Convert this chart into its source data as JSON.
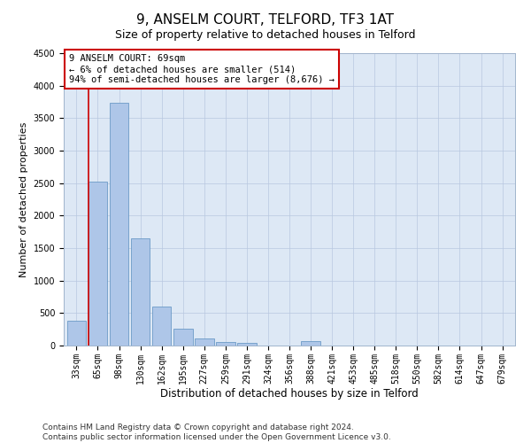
{
  "title": "9, ANSELM COURT, TELFORD, TF3 1AT",
  "subtitle": "Size of property relative to detached houses in Telford",
  "xlabel": "Distribution of detached houses by size in Telford",
  "ylabel": "Number of detached properties",
  "categories": [
    "33sqm",
    "65sqm",
    "98sqm",
    "130sqm",
    "162sqm",
    "195sqm",
    "227sqm",
    "259sqm",
    "291sqm",
    "324sqm",
    "356sqm",
    "388sqm",
    "421sqm",
    "453sqm",
    "485sqm",
    "518sqm",
    "550sqm",
    "582sqm",
    "614sqm",
    "647sqm",
    "679sqm"
  ],
  "values": [
    380,
    2520,
    3730,
    1650,
    605,
    255,
    105,
    60,
    40,
    0,
    0,
    65,
    0,
    0,
    0,
    0,
    0,
    0,
    0,
    0,
    0
  ],
  "bar_color": "#aec6e8",
  "bar_edge_color": "#5a8fc0",
  "vline_x": 1,
  "vline_color": "#cc0000",
  "annotation_text": "9 ANSELM COURT: 69sqm\n← 6% of detached houses are smaller (514)\n94% of semi-detached houses are larger (8,676) →",
  "annotation_box_color": "#ffffff",
  "annotation_box_edge": "#cc0000",
  "ylim": [
    0,
    4500
  ],
  "yticks": [
    0,
    500,
    1000,
    1500,
    2000,
    2500,
    3000,
    3500,
    4000,
    4500
  ],
  "bg_color": "#dde8f5",
  "footnote": "Contains HM Land Registry data © Crown copyright and database right 2024.\nContains public sector information licensed under the Open Government Licence v3.0.",
  "title_fontsize": 11,
  "xlabel_fontsize": 8.5,
  "ylabel_fontsize": 8,
  "tick_fontsize": 7,
  "footnote_fontsize": 6.5
}
